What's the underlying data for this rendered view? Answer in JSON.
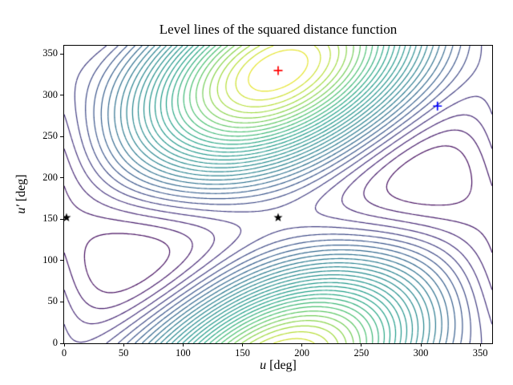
{
  "chart_data": {
    "type": "contour",
    "title": "Level lines of the squared distance function",
    "xlabel_var": "u",
    "xlabel_unit": " [deg]",
    "ylabel_var": "u′",
    "ylabel_unit": " [deg]",
    "xlim": [
      0,
      360
    ],
    "ylim": [
      0,
      360
    ],
    "xticks": [
      0,
      50,
      100,
      150,
      200,
      250,
      300,
      350
    ],
    "yticks": [
      0,
      50,
      100,
      150,
      200,
      250,
      300,
      350
    ],
    "grid": false,
    "legend": false,
    "n_levels": 30,
    "colormap": "viridis",
    "field": {
      "description": "f(u,u') = cos(u-180) + cos(u'-330) + 0.8*cos(u-u'+150), degrees; maximum at (180,330), minima near (51,99) and (309,201), saddles near (180,150) and (0,150)",
      "terms": [
        {
          "coeff": 1.0,
          "cu": 1,
          "cv": 0,
          "phase_deg": -180
        },
        {
          "coeff": 1.0,
          "cu": 0,
          "cv": 1,
          "phase_deg": -330
        },
        {
          "coeff": 0.8,
          "cu": 1,
          "cv": -1,
          "phase_deg": 150
        }
      ]
    },
    "markers": [
      {
        "name": "maximum-marker",
        "symbol": "plus",
        "color": "#ff0000",
        "u": 180,
        "v": 330
      },
      {
        "name": "query-marker",
        "symbol": "plus",
        "color": "#0000ff",
        "u": 314,
        "v": 287
      },
      {
        "name": "saddle-marker-left",
        "symbol": "star",
        "color": "#000000",
        "u": 2,
        "v": 152
      },
      {
        "name": "saddle-marker-center",
        "symbol": "star",
        "color": "#000000",
        "u": 180,
        "v": 152
      }
    ],
    "viridis_stops": [
      "#440154",
      "#46327e",
      "#365c8d",
      "#277f8e",
      "#21918c",
      "#1fa187",
      "#4ac16d",
      "#a0da39",
      "#fde725"
    ]
  }
}
